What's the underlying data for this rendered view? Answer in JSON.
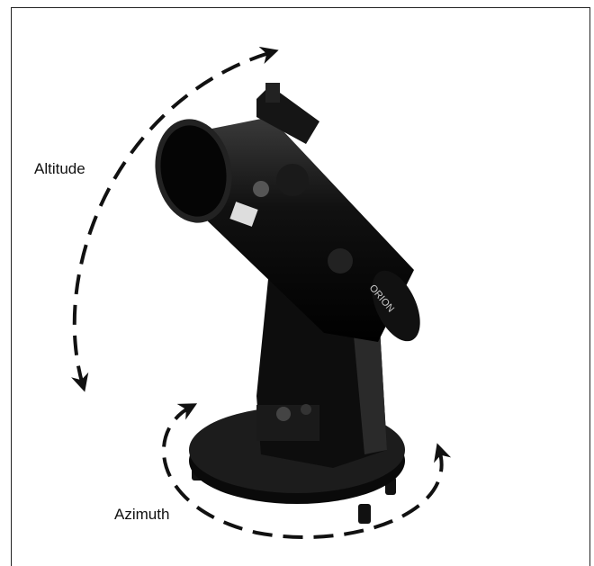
{
  "labels": {
    "altitude": "Altitude",
    "azimuth": "Azimuth"
  }
}
